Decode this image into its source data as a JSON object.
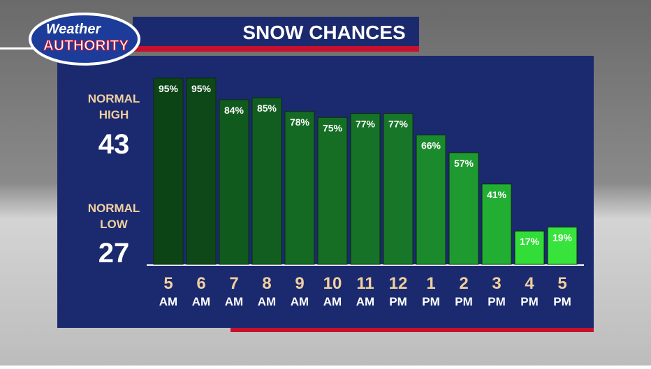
{
  "logo": {
    "line1": "Weather",
    "line2": "AUTHORITY"
  },
  "normals": {
    "high": {
      "label": [
        "NORMAL",
        "HIGH"
      ],
      "value": "43"
    },
    "low": {
      "label": [
        "NORMAL",
        "LOW"
      ],
      "value": "27"
    }
  },
  "chart_data": {
    "type": "bar",
    "title": "SNOW CHANCES",
    "categories": [
      "5 AM",
      "6 AM",
      "7 AM",
      "8 AM",
      "9 AM",
      "10 AM",
      "11 AM",
      "12 PM",
      "1 PM",
      "2 PM",
      "3 PM",
      "4 PM",
      "5 PM"
    ],
    "values": [
      95,
      95,
      84,
      85,
      78,
      75,
      77,
      77,
      66,
      57,
      41,
      17,
      19
    ],
    "value_labels": [
      "95%",
      "95%",
      "84%",
      "85%",
      "78%",
      "75%",
      "77%",
      "77%",
      "66%",
      "57%",
      "41%",
      "17%",
      "19%"
    ],
    "colors": [
      "#0d4416",
      "#0e4818",
      "#115a1e",
      "#125e20",
      "#146a23",
      "#156e24",
      "#167226",
      "#177628",
      "#1a8a2c",
      "#1e9a30",
      "#22ae33",
      "#33dd38",
      "#38e33c"
    ]
  }
}
